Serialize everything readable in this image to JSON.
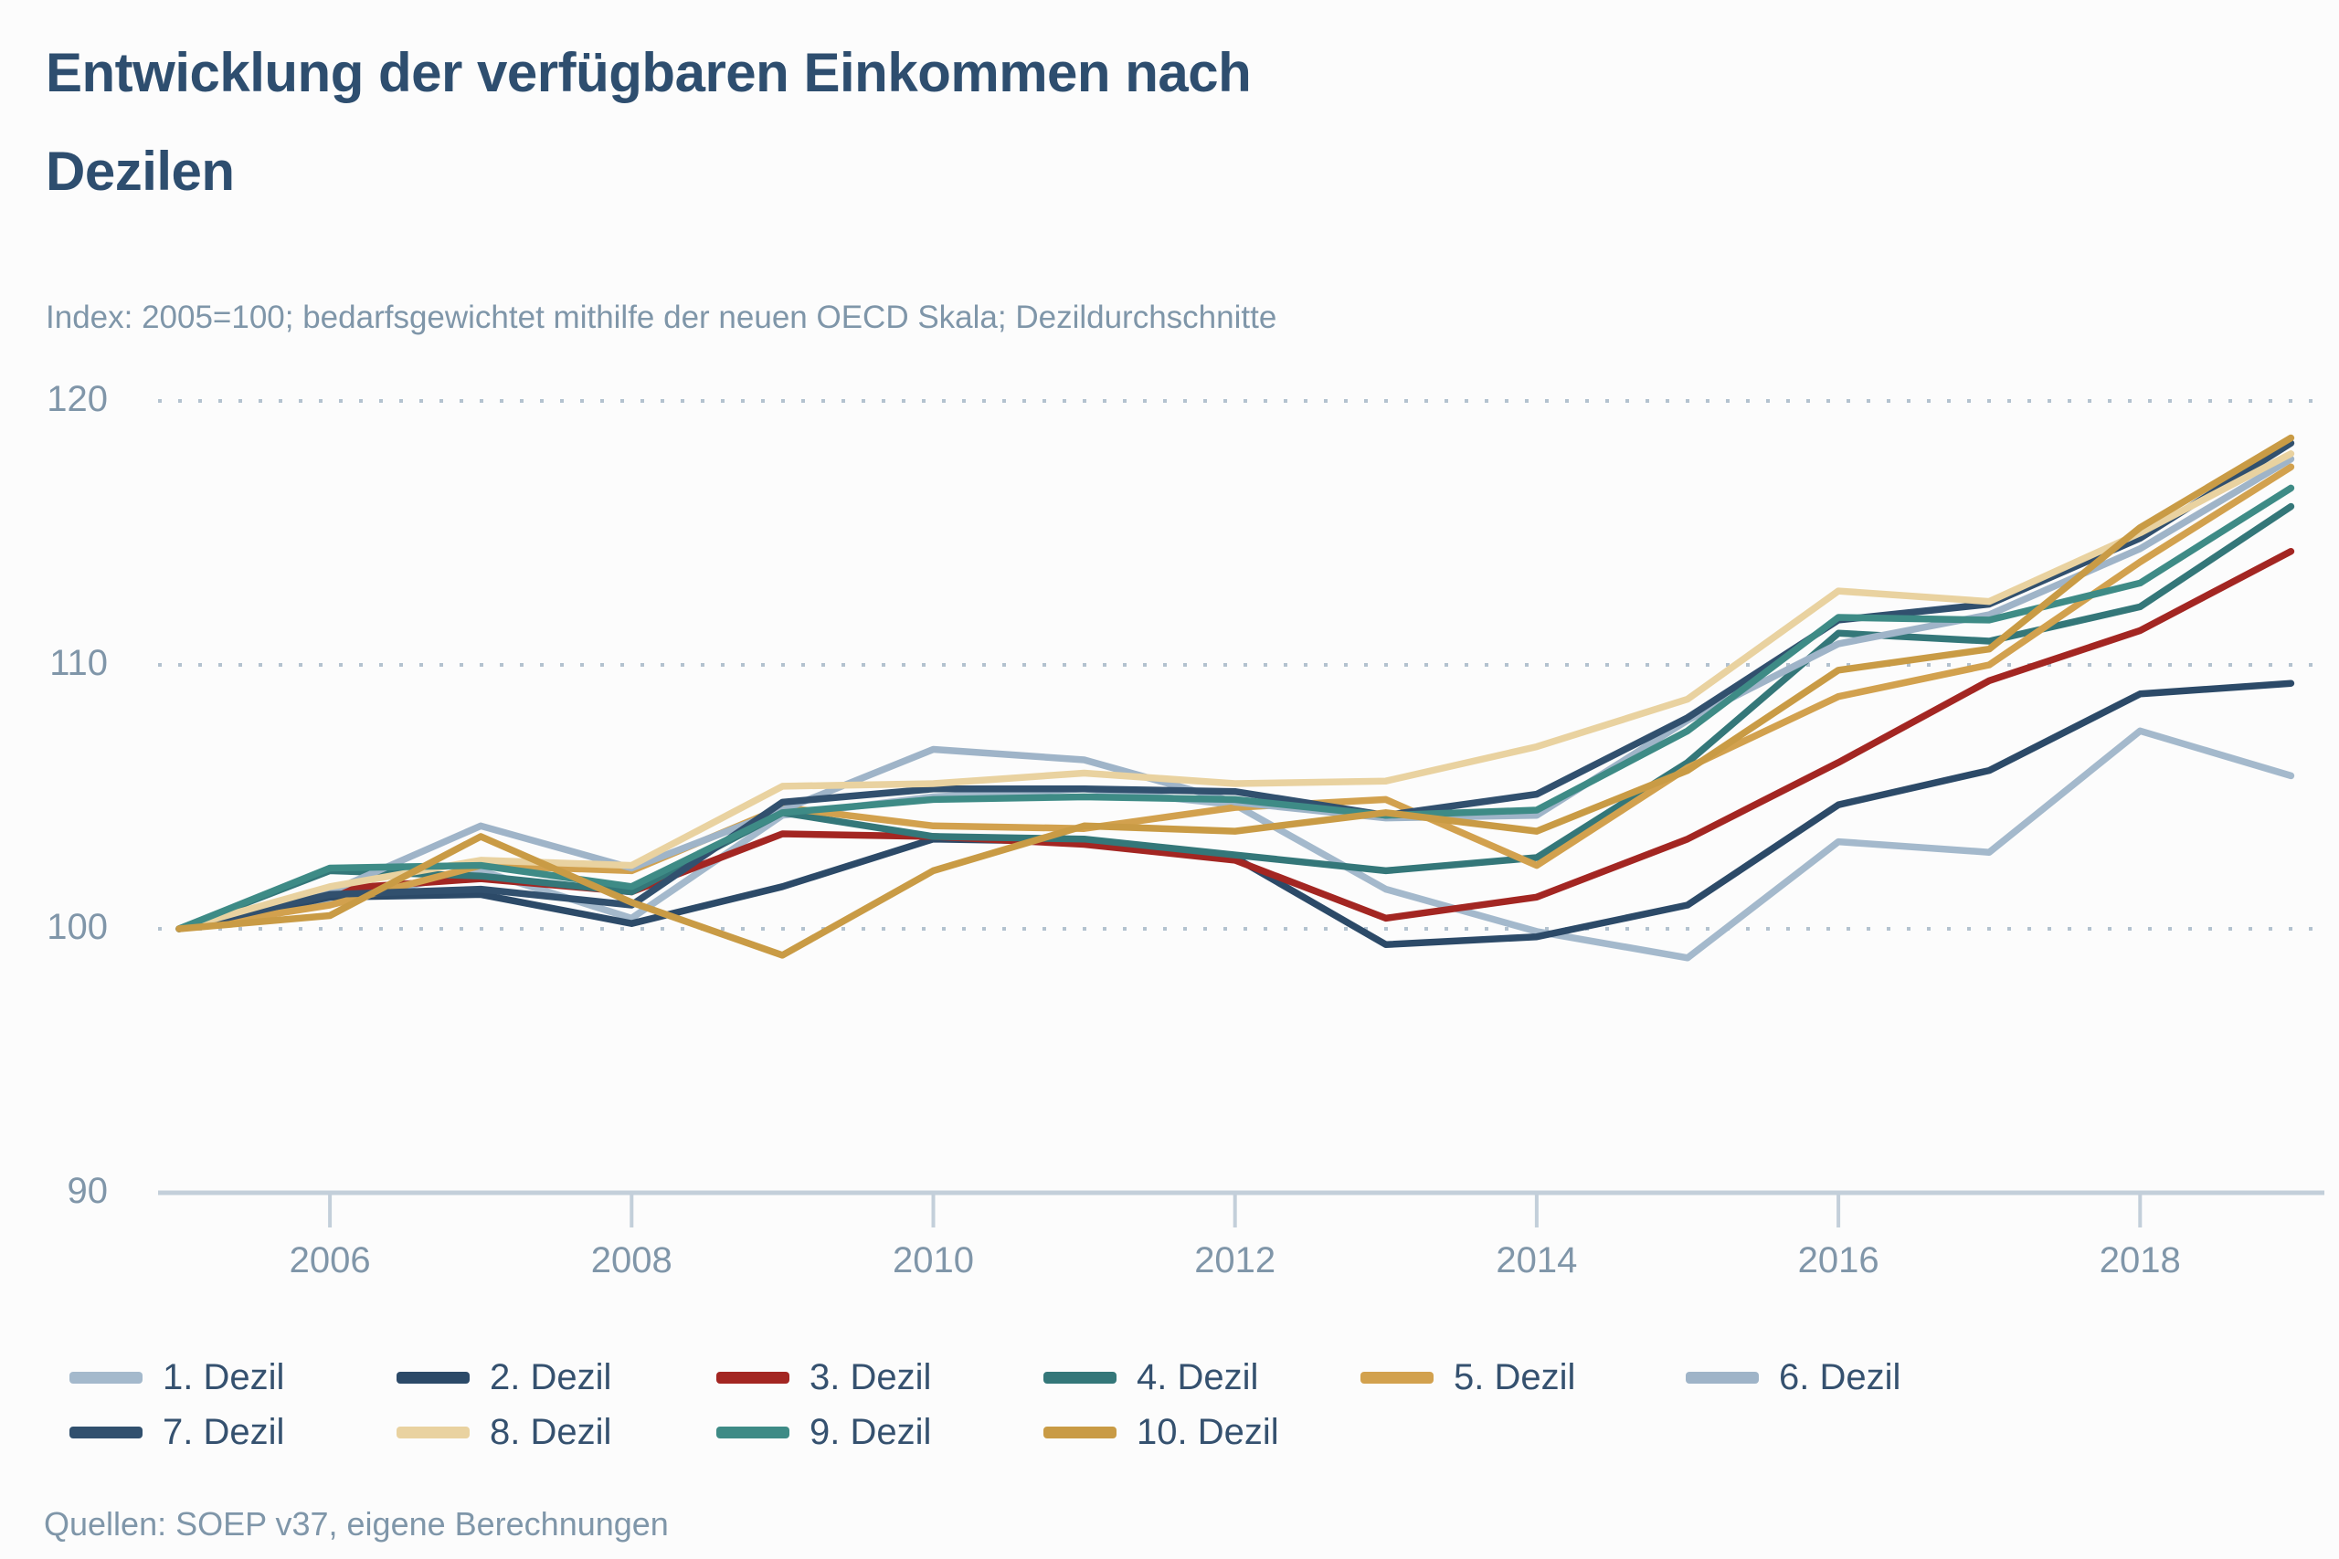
{
  "page": {
    "title_line1": "Entwicklung der verfügbaren Einkommen nach",
    "title_line2": "Dezilen",
    "subtitle": "Index: 2005=100; bedarfsgewichtet mithilfe der neuen OECD Skala; Dezildurchschnitte",
    "source": "Quellen: SOEP v37, eigene Berechnungen"
  },
  "colors": {
    "title": "#2e4e6f",
    "subtitle": "#7f96a9",
    "axis_label": "#8096a9",
    "legend_label": "#35516f",
    "grid_dotted": "#b3c2cf",
    "axis_line": "#c3cfda",
    "background": "#fcfcfc"
  },
  "chart_data": {
    "type": "line",
    "title": "Entwicklung der verfügbaren Einkommen nach Dezilen",
    "xlabel": "",
    "ylabel": "Index: 2005=100",
    "x": [
      2005,
      2006,
      2007,
      2008,
      2009,
      2010,
      2011,
      2012,
      2013,
      2014,
      2015,
      2016,
      2017,
      2018,
      2019
    ],
    "x_tick_labels": [
      "2006",
      "2008",
      "2010",
      "2012",
      "2014",
      "2016",
      "2018"
    ],
    "x_tick_years": [
      2006,
      2008,
      2010,
      2012,
      2014,
      2016,
      2018
    ],
    "y_tick_labels": [
      "90",
      "100",
      "110",
      "120"
    ],
    "y_tick_values": [
      90,
      100,
      110,
      120
    ],
    "ylim": [
      88.5,
      121
    ],
    "grid": "horizontal dotted lines at 100, 110, 120; solid baseline at 90",
    "legend_position": "bottom-left, two rows",
    "series": [
      {
        "name": "1. Dezil",
        "color": "#a4b9cc",
        "values": [
          100,
          101.0,
          102.2,
          100.4,
          104.3,
          105.0,
          105.3,
          104.7,
          101.5,
          99.9,
          98.9,
          103.3,
          102.9,
          107.5,
          105.8
        ]
      },
      {
        "name": "2. Dezil",
        "color": "#2c4a68",
        "values": [
          100,
          101.2,
          101.3,
          100.2,
          101.6,
          103.4,
          103.3,
          102.7,
          99.4,
          99.7,
          100.9,
          104.7,
          106.0,
          108.9,
          109.3
        ]
      },
      {
        "name": "3. Dezil",
        "color": "#a32622",
        "values": [
          100,
          101.5,
          101.9,
          101.4,
          103.6,
          103.5,
          103.2,
          102.6,
          100.4,
          101.2,
          103.4,
          106.3,
          109.4,
          111.3,
          114.3
        ]
      },
      {
        "name": "4. Dezil",
        "color": "#347779",
        "values": [
          100,
          102.2,
          102.0,
          101.4,
          104.4,
          103.5,
          103.4,
          102.8,
          102.2,
          102.7,
          106.3,
          111.2,
          110.9,
          112.2,
          116.0
        ]
      },
      {
        "name": "5. Dezil",
        "color": "#d2a14e",
        "values": [
          100,
          100.9,
          102.4,
          102.2,
          104.6,
          103.9,
          103.8,
          104.6,
          104.9,
          102.4,
          106.1,
          108.8,
          110.0,
          113.9,
          117.5
        ]
      },
      {
        "name": "6. Dezil",
        "color": "#9fb4c8",
        "values": [
          100,
          101.4,
          103.9,
          102.3,
          104.5,
          106.8,
          106.4,
          104.8,
          104.2,
          104.3,
          107.9,
          110.8,
          111.9,
          114.4,
          117.8
        ]
      },
      {
        "name": "7. Dezil",
        "color": "#31506e",
        "values": [
          100,
          101.3,
          101.5,
          100.9,
          104.8,
          105.3,
          105.3,
          105.2,
          104.3,
          105.1,
          108.0,
          111.7,
          112.3,
          114.8,
          118.4
        ]
      },
      {
        "name": "8. Dezil",
        "color": "#e9d2a0",
        "values": [
          100,
          101.6,
          102.6,
          102.4,
          105.4,
          105.5,
          105.9,
          105.5,
          105.6,
          106.9,
          108.7,
          112.8,
          112.4,
          115.0,
          118.0
        ]
      },
      {
        "name": "9. Dezil",
        "color": "#3e8b86",
        "values": [
          100,
          102.3,
          102.4,
          101.6,
          104.4,
          104.9,
          105.0,
          104.9,
          104.3,
          104.5,
          107.5,
          111.8,
          111.7,
          113.1,
          116.7
        ]
      },
      {
        "name": "10. Dezil",
        "color": "#c99b45",
        "values": [
          100,
          100.5,
          103.5,
          101.0,
          99.0,
          102.2,
          103.9,
          103.7,
          104.4,
          103.7,
          106.0,
          109.8,
          110.6,
          115.2,
          118.6
        ]
      }
    ]
  }
}
